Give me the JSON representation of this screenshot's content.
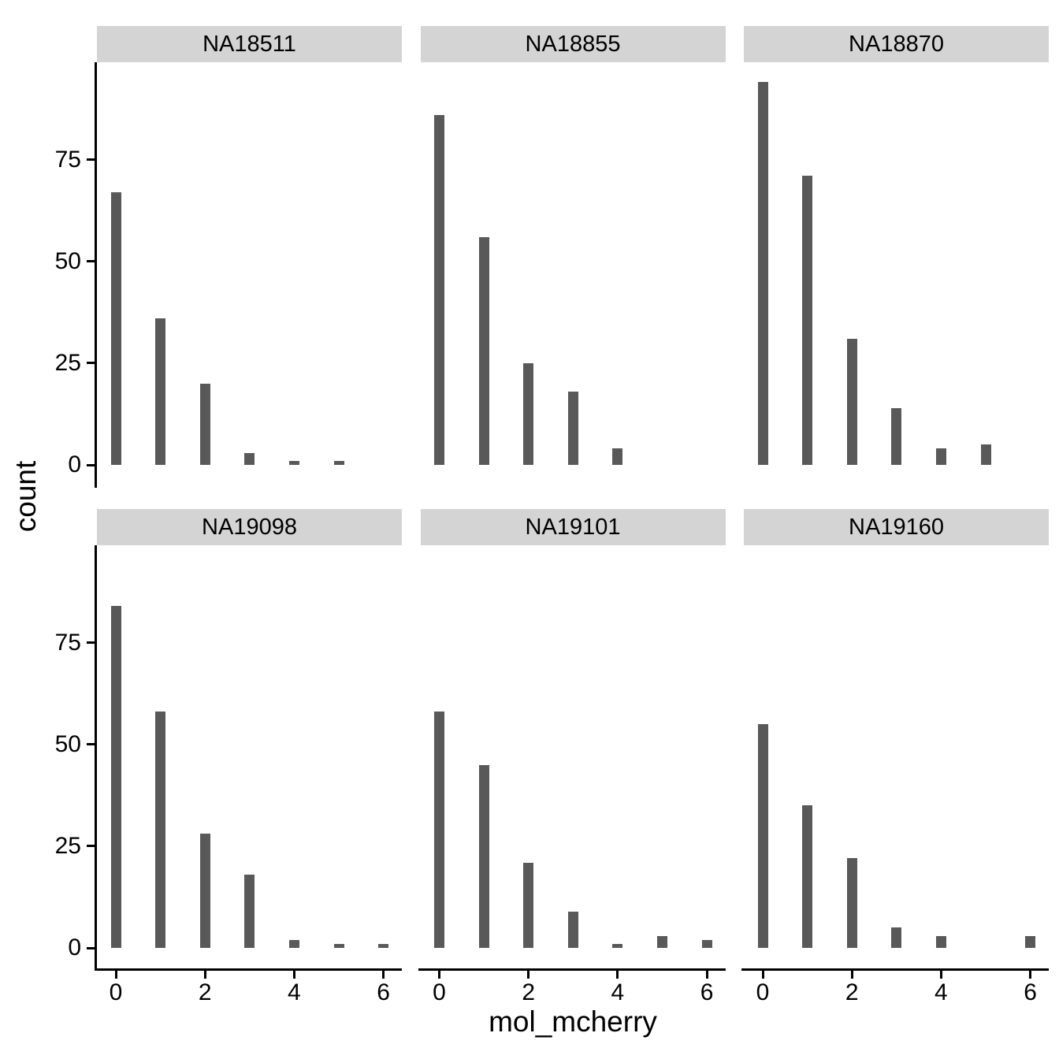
{
  "chart_data": {
    "type": "bar",
    "title": "",
    "xlabel": "mol_mcherry",
    "ylabel": "count",
    "facet_layout": {
      "rows": 2,
      "cols": 3
    },
    "x": [
      0,
      1,
      2,
      3,
      4,
      5,
      6
    ],
    "series": [
      {
        "name": "NA18511",
        "values": [
          67,
          36,
          20,
          3,
          1,
          1,
          0
        ]
      },
      {
        "name": "NA18855",
        "values": [
          86,
          56,
          25,
          18,
          4,
          0,
          0
        ]
      },
      {
        "name": "NA18870",
        "values": [
          94,
          71,
          31,
          14,
          4,
          5,
          0
        ]
      },
      {
        "name": "NA19098",
        "values": [
          84,
          58,
          28,
          18,
          2,
          1,
          1
        ]
      },
      {
        "name": "NA19101",
        "values": [
          58,
          45,
          21,
          9,
          1,
          3,
          2
        ]
      },
      {
        "name": "NA19160",
        "values": [
          55,
          35,
          22,
          5,
          3,
          0,
          3
        ]
      }
    ],
    "x_ticks": [
      "0",
      "2",
      "4",
      "6"
    ],
    "x_tick_values": [
      0,
      2,
      4,
      6
    ],
    "y_ticks": [
      "0",
      "25",
      "50",
      "75"
    ],
    "y_tick_values": [
      0,
      25,
      50,
      75
    ],
    "xlim": [
      -0.42,
      6.42
    ],
    "ylim": [
      0,
      99
    ],
    "grid": false,
    "legend": false,
    "bar_color": "#595959",
    "strip_bg": "#D4D4D4",
    "axis_color": "#000000",
    "background": "#FFFFFF"
  }
}
